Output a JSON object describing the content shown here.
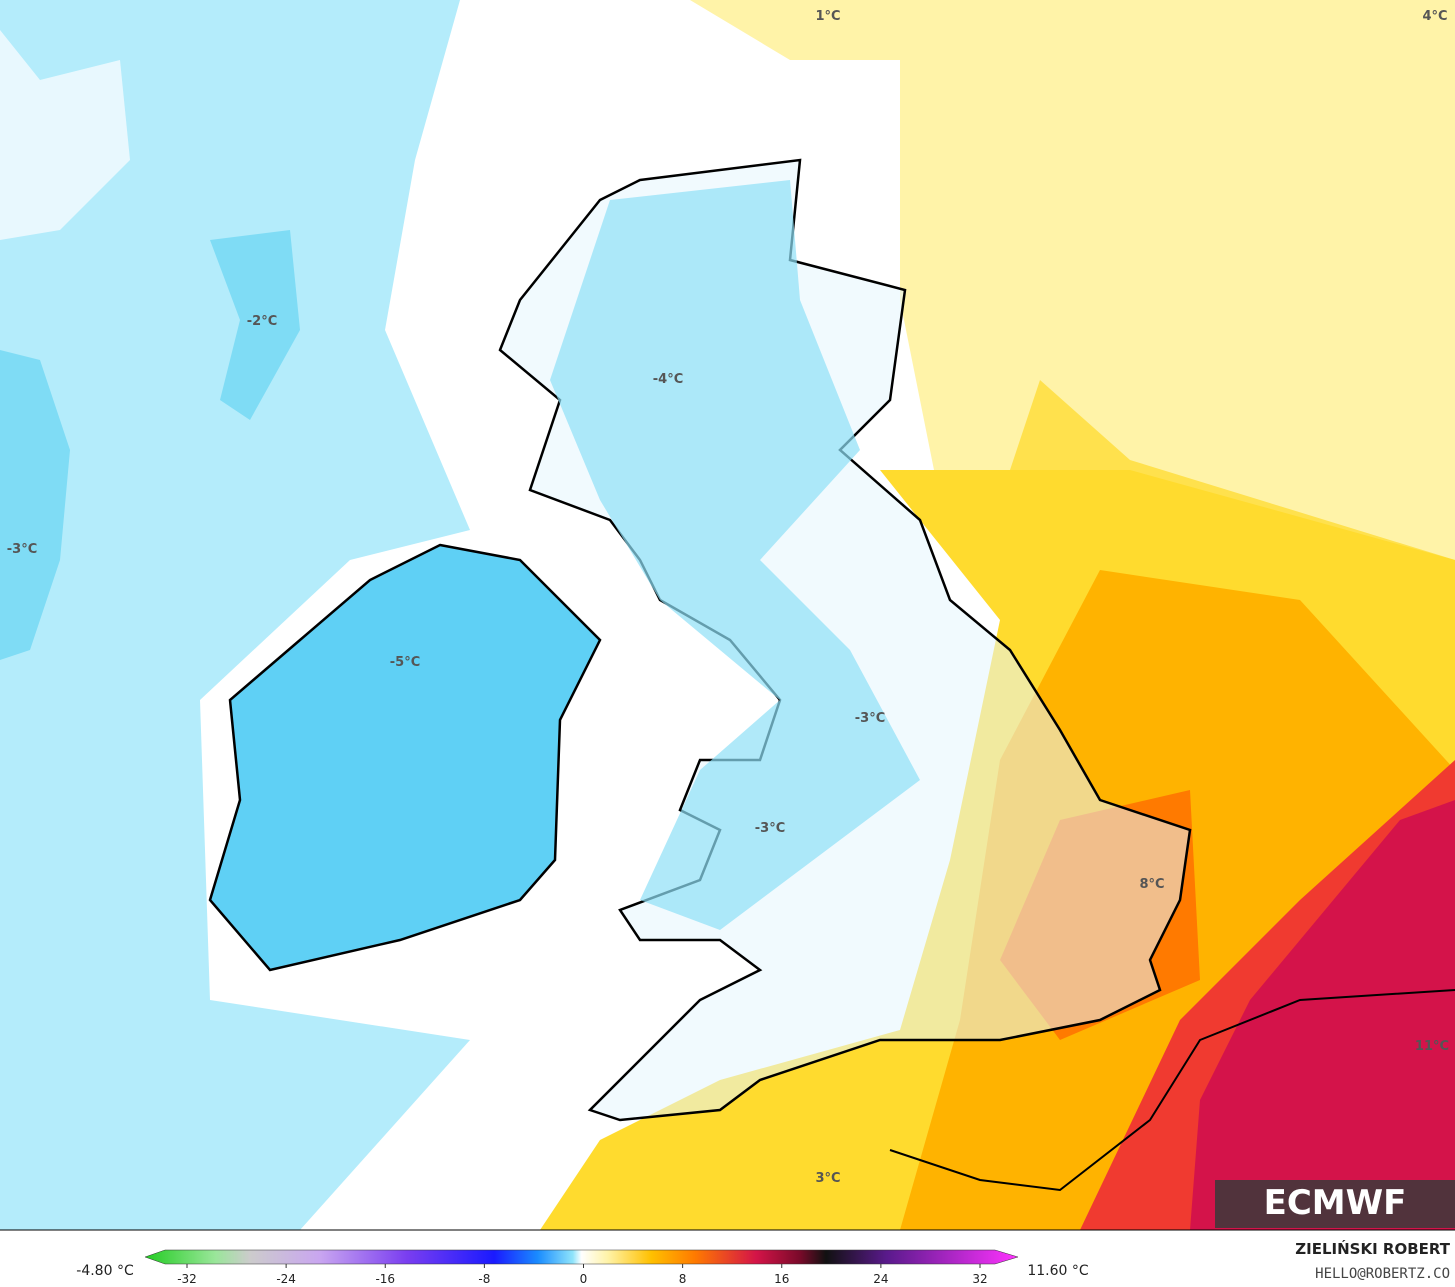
{
  "contour_labels": [
    "1°C",
    "4°C",
    "-2°C",
    "-3°C",
    "-4°C",
    "-5°C",
    "-3°C",
    "-3°C",
    "8°C",
    "11°C",
    "3°C"
  ],
  "colorbar": {
    "min_label": "-4.80 °C",
    "max_label": "11.60 °C",
    "ticks": [
      -32,
      -24,
      -16,
      -8,
      0,
      8,
      16,
      24,
      32
    ]
  },
  "author": {
    "name": "ZIELIŃSKI ROBERT",
    "contact": "HELLO@ROBERTZ.CO"
  },
  "logo": "ECMWF"
}
